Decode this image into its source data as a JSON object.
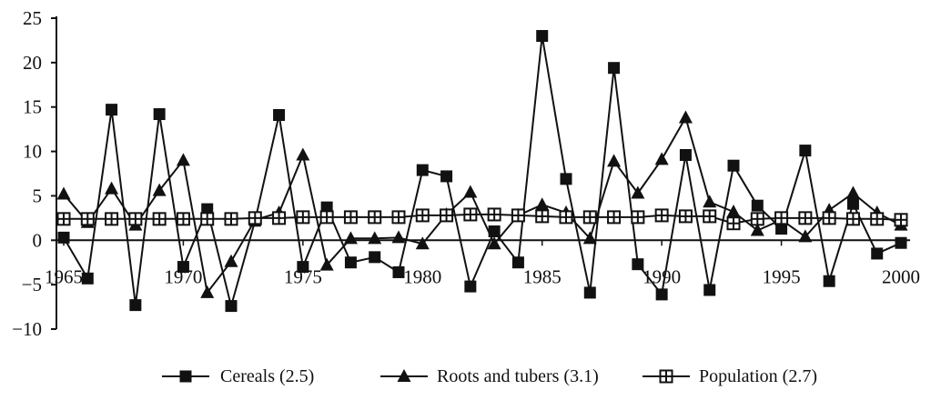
{
  "chart_data": {
    "type": "line",
    "title": "",
    "xlabel": "",
    "ylabel": "",
    "xlim": [
      1965,
      2000
    ],
    "ylim": [
      -10,
      25
    ],
    "yticks": [
      -10,
      -5,
      0,
      5,
      10,
      15,
      20,
      25
    ],
    "xticks": [
      1965,
      1970,
      1975,
      1980,
      1985,
      1990,
      1995,
      2000
    ],
    "grid": false,
    "legend_position": "bottom",
    "x": [
      1965,
      1966,
      1967,
      1968,
      1969,
      1970,
      1971,
      1972,
      1973,
      1974,
      1975,
      1976,
      1977,
      1978,
      1979,
      1980,
      1981,
      1982,
      1983,
      1984,
      1985,
      1986,
      1987,
      1988,
      1989,
      1990,
      1991,
      1992,
      1993,
      1994,
      1995,
      1996,
      1997,
      1998,
      1999,
      2000
    ],
    "series": [
      {
        "name": "Cereals (2.5)",
        "marker": "square-filled",
        "color": "#111111",
        "values": [
          0.3,
          -4.3,
          14.7,
          -7.3,
          14.2,
          -3.0,
          3.5,
          -7.4,
          2.2,
          14.1,
          -3.0,
          3.7,
          -2.5,
          -1.9,
          -3.6,
          7.9,
          7.2,
          -5.2,
          1.0,
          -2.5,
          23.0,
          6.9,
          -5.9,
          19.4,
          -2.7,
          -6.1,
          9.6,
          -5.6,
          8.4,
          3.9,
          1.3,
          10.1,
          -4.6,
          4.1,
          -1.5,
          -0.3
        ]
      },
      {
        "name": "Roots and tubers (3.1)",
        "marker": "triangle-filled",
        "color": "#111111",
        "values": [
          5.2,
          2.0,
          5.8,
          1.7,
          5.6,
          9.0,
          -5.9,
          -2.4,
          2.3,
          3.1,
          9.6,
          -2.8,
          0.2,
          0.2,
          0.3,
          -0.4,
          2.9,
          5.4,
          -0.4,
          2.8,
          4.0,
          3.1,
          0.2,
          8.9,
          5.3,
          9.1,
          13.8,
          4.3,
          3.2,
          1.1,
          2.3,
          0.4,
          3.4,
          5.3,
          3.1,
          1.7
        ]
      },
      {
        "name": "Population (2.7)",
        "marker": "square-open-cross",
        "color": "#111111",
        "values": [
          2.4,
          2.4,
          2.4,
          2.4,
          2.4,
          2.4,
          2.4,
          2.4,
          2.5,
          2.5,
          2.6,
          2.6,
          2.6,
          2.6,
          2.6,
          2.8,
          2.8,
          2.9,
          2.9,
          2.8,
          2.7,
          2.6,
          2.6,
          2.6,
          2.6,
          2.8,
          2.7,
          2.7,
          1.9,
          2.4,
          2.5,
          2.5,
          2.5,
          2.4,
          2.4,
          2.3
        ]
      }
    ]
  }
}
